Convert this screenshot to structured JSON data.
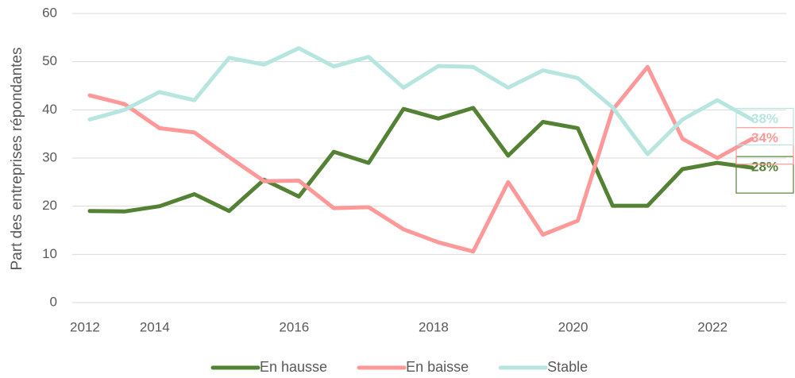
{
  "chart_data": {
    "type": "line",
    "y_label": "Part des entreprises répondantes",
    "categories": [
      "2012",
      null,
      "2014",
      null,
      null,
      null,
      "2016",
      null,
      null,
      null,
      "2018",
      null,
      null,
      null,
      "2020",
      null,
      null,
      null,
      "2022",
      null
    ],
    "series": [
      {
        "name": "En hausse",
        "color": "#548235",
        "values": [
          19,
          18.9,
          20,
          22.5,
          19,
          25.5,
          22,
          31.3,
          29,
          40.2,
          38.2,
          40.4,
          30.5,
          37.5,
          36.2,
          20.1,
          20.1,
          27.7,
          29,
          28
        ],
        "value_labels": [
          null,
          null,
          null,
          null,
          null,
          null,
          null,
          null,
          null,
          null,
          null,
          null,
          null,
          null,
          null,
          null,
          null,
          null,
          null,
          "28%"
        ]
      },
      {
        "name": "En baisse",
        "color": "#ff9999",
        "values": [
          43,
          41.2,
          36.2,
          35.3,
          30.2,
          25.2,
          25.3,
          19.6,
          19.8,
          15.2,
          12.5,
          10.6,
          25,
          14.1,
          17,
          40,
          48.9,
          34,
          30,
          34
        ],
        "value_labels": [
          null,
          null,
          null,
          null,
          null,
          null,
          null,
          null,
          null,
          null,
          null,
          null,
          null,
          null,
          null,
          null,
          null,
          null,
          null,
          "34%"
        ]
      },
      {
        "name": "Stable",
        "color": "#b7e6e0",
        "values": [
          38,
          40,
          43.7,
          42,
          50.8,
          49.4,
          52.8,
          49,
          51,
          44.6,
          49.1,
          48.9,
          44.6,
          48.2,
          46.6,
          40.5,
          30.8,
          38,
          42,
          38
        ],
        "value_labels": [
          null,
          null,
          null,
          null,
          null,
          null,
          null,
          null,
          null,
          null,
          null,
          null,
          null,
          null,
          null,
          null,
          null,
          null,
          null,
          "38%"
        ]
      }
    ],
    "ylim": [
      0,
      60
    ],
    "yticks": [
      0,
      10,
      20,
      30,
      40,
      50,
      60
    ],
    "grid": true,
    "legend": "bottom"
  }
}
